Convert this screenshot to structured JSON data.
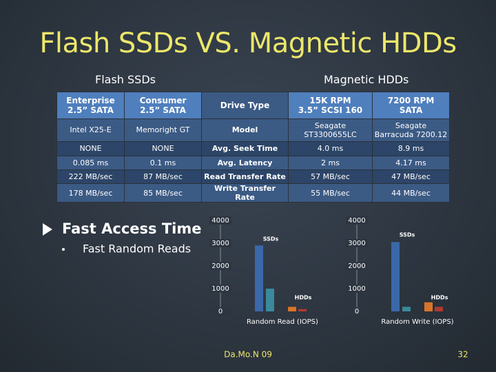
{
  "title": "Flash SSDs VS. Magnetic HDDs",
  "group_titles": [
    "Flash SSDs",
    "Magnetic HDDs"
  ],
  "table": {
    "rows": [
      [
        "Enterprise\n2.5” SATA",
        "Consumer\n2.5” SATA",
        "Drive Type",
        "15K RPM\n3.5” SCSI 160",
        "7200 RPM\nSATA"
      ],
      [
        "Intel X25-E",
        "Memoright GT",
        "Model",
        "Seagate\nST3300655LC",
        "Seagate\nBarracuda 7200.12"
      ],
      [
        "NONE",
        "NONE",
        "Avg. Seek Time",
        "4.0 ms",
        "8.9 ms"
      ],
      [
        "0.085 ms",
        "0.1 ms",
        "Avg. Latency",
        "2 ms",
        "4.17 ms"
      ],
      [
        "222 MB/sec",
        "87 MB/sec",
        "Read Transfer Rate",
        "57 MB/sec",
        "47 MB/sec"
      ],
      [
        "178 MB/sec",
        "85 MB/sec",
        "Write Transfer Rate",
        "55 MB/sec",
        "44 MB/sec"
      ]
    ]
  },
  "bullets": [
    "Fast Access Time",
    "Fast Random Reads"
  ],
  "footer": "Da.Mo.N 09",
  "page_number": "32",
  "chart_data": [
    {
      "type": "bar",
      "x_label": "Random Read (IOPS)",
      "categories": [
        null,
        null,
        null,
        null
      ],
      "values": [
        2900,
        1000,
        200,
        100
      ],
      "colors": [
        "#3b68a8",
        "#3a8a9c",
        "#d9742a",
        "#b03a2e"
      ],
      "annotations": [
        "SSDs",
        "HDDs"
      ],
      "ylim": [
        0,
        4000
      ],
      "yticks": [
        0,
        1000,
        2000,
        3000,
        4000
      ]
    },
    {
      "type": "bar",
      "x_label": "Random Write (IOPS)",
      "categories": [
        null,
        null,
        null,
        null
      ],
      "values": [
        3050,
        200,
        400,
        200
      ],
      "colors": [
        "#3b68a8",
        "#3a8a9c",
        "#d9742a",
        "#b03a2e"
      ],
      "annotations": [
        "SSDs",
        "HDDs"
      ],
      "ylim": [
        0,
        4000
      ],
      "yticks": [
        0,
        1000,
        2000,
        3000,
        4000
      ]
    }
  ]
}
